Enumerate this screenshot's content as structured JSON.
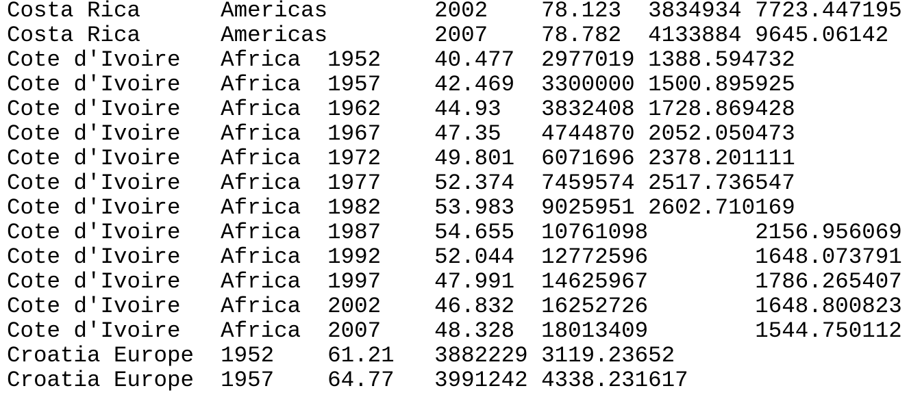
{
  "rows": [
    [
      "Costa Rica",
      "Americas",
      "2002",
      "78.123",
      "3834934",
      "7723.447195"
    ],
    [
      "Costa Rica",
      "Americas",
      "2007",
      "78.782",
      "4133884",
      "9645.06142"
    ],
    [
      "Cote d'Ivoire",
      "Africa",
      "1952",
      "40.477",
      "2977019",
      "1388.594732"
    ],
    [
      "Cote d'Ivoire",
      "Africa",
      "1957",
      "42.469",
      "3300000",
      "1500.895925"
    ],
    [
      "Cote d'Ivoire",
      "Africa",
      "1962",
      "44.93",
      "3832408",
      "1728.869428"
    ],
    [
      "Cote d'Ivoire",
      "Africa",
      "1967",
      "47.35",
      "4744870",
      "2052.050473"
    ],
    [
      "Cote d'Ivoire",
      "Africa",
      "1972",
      "49.801",
      "6071696",
      "2378.201111"
    ],
    [
      "Cote d'Ivoire",
      "Africa",
      "1977",
      "52.374",
      "7459574",
      "2517.736547"
    ],
    [
      "Cote d'Ivoire",
      "Africa",
      "1982",
      "53.983",
      "9025951",
      "2602.710169"
    ],
    [
      "Cote d'Ivoire",
      "Africa",
      "1987",
      "54.655",
      "10761098",
      "2156.956069"
    ],
    [
      "Cote d'Ivoire",
      "Africa",
      "1992",
      "52.044",
      "12772596",
      "1648.073791"
    ],
    [
      "Cote d'Ivoire",
      "Africa",
      "1997",
      "47.991",
      "14625967",
      "1786.265407"
    ],
    [
      "Cote d'Ivoire",
      "Africa",
      "2002",
      "46.832",
      "16252726",
      "1648.800823"
    ],
    [
      "Cote d'Ivoire",
      "Africa",
      "2007",
      "48.328",
      "18013409",
      "1544.750112"
    ],
    [
      "Croatia",
      "Europe",
      "1952",
      "61.21",
      "3882229",
      "3119.23652"
    ],
    [
      "Croatia",
      "Europe",
      "1957",
      "64.77",
      "3991242",
      "4338.231617"
    ]
  ]
}
